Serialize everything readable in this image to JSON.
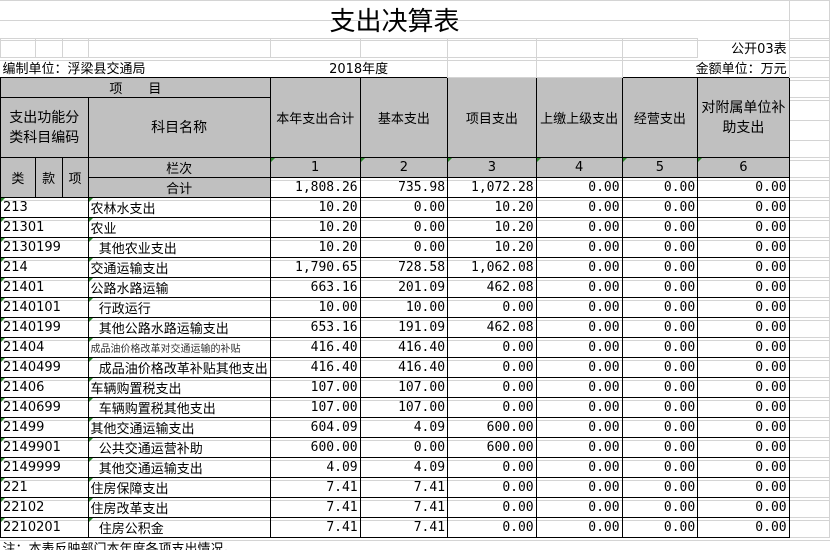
{
  "title": "支出决算表",
  "form_no": "公开03表",
  "unit": "编制单位：浮梁县交通局",
  "year": "2018年度",
  "money_unit": "金额单位：万元",
  "header": {
    "item": "项　　目",
    "code": "支出功能分类科目编码",
    "name": "科目名称",
    "cols": [
      "本年支出合计",
      "基本支出",
      "项目支出",
      "上缴上级支出",
      "经营支出",
      "对附属单位补助支出"
    ],
    "lei": "类",
    "kuan": "款",
    "xiang": "项",
    "lanci": "栏次",
    "col_nums": [
      "1",
      "2",
      "3",
      "4",
      "5",
      "6"
    ],
    "total_label": "合计",
    "totals": [
      "1,808.26",
      "735.98",
      "1,072.28",
      "0.00",
      "0.00",
      "0.00"
    ]
  },
  "rows": [
    {
      "code": "213",
      "name": "农林水支出",
      "v": [
        "10.20",
        "0.00",
        "10.20",
        "0.00",
        "0.00",
        "0.00"
      ]
    },
    {
      "code": "21301",
      "name": "农业",
      "v": [
        "10.20",
        "0.00",
        "10.20",
        "0.00",
        "0.00",
        "0.00"
      ]
    },
    {
      "code": "2130199",
      "name": "  其他农业支出",
      "v": [
        "10.20",
        "0.00",
        "10.20",
        "0.00",
        "0.00",
        "0.00"
      ]
    },
    {
      "code": "214",
      "name": "交通运输支出",
      "v": [
        "1,790.65",
        "728.58",
        "1,062.08",
        "0.00",
        "0.00",
        "0.00"
      ]
    },
    {
      "code": "21401",
      "name": "公路水路运输",
      "v": [
        "663.16",
        "201.09",
        "462.08",
        "0.00",
        "0.00",
        "0.00"
      ]
    },
    {
      "code": "2140101",
      "name": "  行政运行",
      "v": [
        "10.00",
        "10.00",
        "0.00",
        "0.00",
        "0.00",
        "0.00"
      ]
    },
    {
      "code": "2140199",
      "name": "  其他公路水路运输支出",
      "v": [
        "653.16",
        "191.09",
        "462.08",
        "0.00",
        "0.00",
        "0.00"
      ]
    },
    {
      "code": "21404",
      "name": "成品油价格改革对交通运输的补贴",
      "small": true,
      "v": [
        "416.40",
        "416.40",
        "0.00",
        "0.00",
        "0.00",
        "0.00"
      ]
    },
    {
      "code": "2140499",
      "name": "  成品油价格改革补贴其他支出",
      "v": [
        "416.40",
        "416.40",
        "0.00",
        "0.00",
        "0.00",
        "0.00"
      ]
    },
    {
      "code": "21406",
      "name": "车辆购置税支出",
      "v": [
        "107.00",
        "107.00",
        "0.00",
        "0.00",
        "0.00",
        "0.00"
      ]
    },
    {
      "code": "2140699",
      "name": "  车辆购置税其他支出",
      "v": [
        "107.00",
        "107.00",
        "0.00",
        "0.00",
        "0.00",
        "0.00"
      ]
    },
    {
      "code": "21499",
      "name": "其他交通运输支出",
      "v": [
        "604.09",
        "4.09",
        "600.00",
        "0.00",
        "0.00",
        "0.00"
      ]
    },
    {
      "code": "2149901",
      "name": "  公共交通运营补助",
      "v": [
        "600.00",
        "0.00",
        "600.00",
        "0.00",
        "0.00",
        "0.00"
      ]
    },
    {
      "code": "2149999",
      "name": "  其他交通运输支出",
      "v": [
        "4.09",
        "4.09",
        "0.00",
        "0.00",
        "0.00",
        "0.00"
      ]
    },
    {
      "code": "221",
      "name": "住房保障支出",
      "v": [
        "7.41",
        "7.41",
        "0.00",
        "0.00",
        "0.00",
        "0.00"
      ]
    },
    {
      "code": "22102",
      "name": "住房改革支出",
      "v": [
        "7.41",
        "7.41",
        "0.00",
        "0.00",
        "0.00",
        "0.00"
      ]
    },
    {
      "code": "2210201",
      "name": "  住房公积金",
      "v": [
        "7.41",
        "7.41",
        "0.00",
        "0.00",
        "0.00",
        "0.00"
      ]
    }
  ],
  "note": "注：本表反映部门本年度各项支出情况。"
}
